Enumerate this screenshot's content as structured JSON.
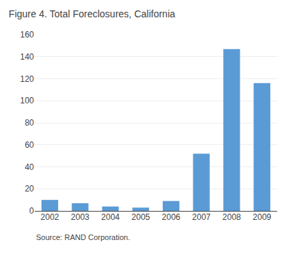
{
  "chart_data": {
    "type": "bar",
    "title": "Figure 4. Total Foreclosures, California",
    "categories": [
      "2002",
      "2003",
      "2004",
      "2005",
      "2006",
      "2007",
      "2008",
      "2009"
    ],
    "values": [
      10,
      7,
      4,
      3,
      9,
      52,
      147,
      116
    ],
    "color": "#5b9bd5",
    "ylim": [
      0,
      160
    ],
    "yticks": [
      0,
      20,
      40,
      60,
      80,
      100,
      120,
      140,
      160
    ],
    "grid": true,
    "annotations": [
      "Source: RAND Corporation."
    ]
  }
}
